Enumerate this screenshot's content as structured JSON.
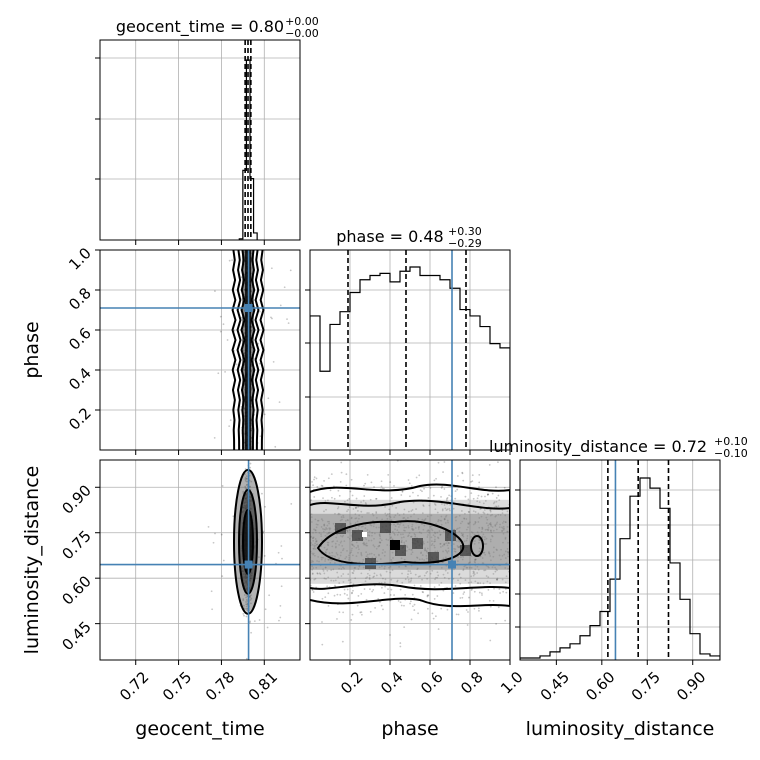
{
  "chart_data": {
    "type": "corner",
    "parameters": [
      "geocent_time",
      "phase",
      "luminosity_distance"
    ],
    "truths": {
      "geocent_time": 0.799,
      "phase": 0.71,
      "luminosity_distance": 0.645
    },
    "ranges": {
      "geocent_time": [
        0.695,
        0.835
      ],
      "phase": [
        0.0,
        1.0
      ],
      "luminosity_distance": [
        0.33,
        0.99
      ]
    },
    "ticks": {
      "geocent_time": [
        "0.72",
        "0.75",
        "0.78",
        "0.81"
      ],
      "phase": [
        "0.2",
        "0.4",
        "0.6",
        "0.8",
        "1.0"
      ],
      "luminosity_distance": [
        "0.45",
        "0.60",
        "0.75",
        "0.90"
      ]
    },
    "phase_y_ticks": [
      "0.2",
      "0.4",
      "0.6",
      "0.8",
      "1.0"
    ],
    "titles": {
      "geocent_time": {
        "name": "geocent_time",
        "median": "0.80",
        "plus": "+0.00",
        "minus": "−0.00"
      },
      "phase": {
        "name": "phase",
        "median": "0.48",
        "plus": "+0.30",
        "minus": "−0.29"
      },
      "luminosity_distance": {
        "name": "luminosity_distance",
        "median": "0.72",
        "plus": "+0.10",
        "minus": "−0.10"
      }
    },
    "marginals": {
      "geocent_time": {
        "bin_edges": [
          0.7925,
          0.795,
          0.7975,
          0.8,
          0.8025,
          0.805
        ],
        "counts": [
          2,
          118,
          305,
          104,
          12
        ],
        "quantiles": [
          0.7966,
          0.7986,
          0.8006
        ]
      },
      "phase": {
        "bins": 20,
        "counts": [
          63,
          37,
          59,
          65,
          74,
          80,
          82,
          83,
          79,
          84,
          86,
          82,
          82,
          80,
          76,
          66,
          63,
          58,
          50,
          48
        ],
        "quantiles": [
          0.19,
          0.48,
          0.78
        ]
      },
      "luminosity_distance": {
        "bins": 20,
        "counts": [
          1,
          1,
          2,
          4,
          6,
          8,
          12,
          17,
          24,
          40,
          60,
          81,
          90,
          85,
          75,
          48,
          30,
          13,
          3,
          2
        ],
        "quantiles": [
          0.62,
          0.72,
          0.82
        ]
      }
    }
  }
}
